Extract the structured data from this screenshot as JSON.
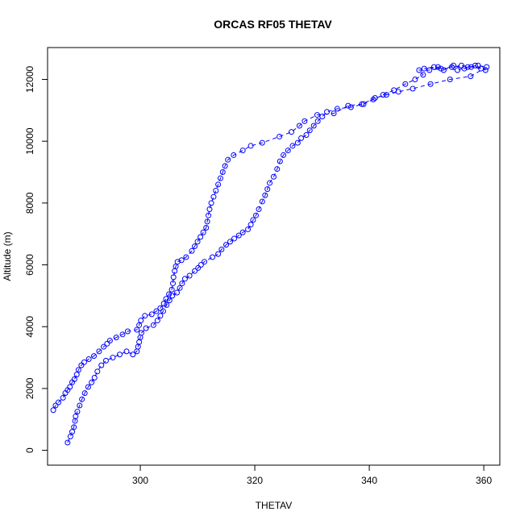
{
  "chart_data": {
    "type": "scatter",
    "title": "ORCAS RF05 THETAV",
    "xlabel": "THETAV",
    "ylabel": "Altitude (m)",
    "xlim": [
      283.8,
      362.8
    ],
    "ylim": [
      -480,
      13030
    ],
    "x_ticks": [
      300,
      320,
      340,
      360
    ],
    "y_ticks": [
      0,
      2000,
      4000,
      6000,
      8000,
      10000,
      12000
    ],
    "grid": false,
    "legend": "none",
    "marker": "open-circle",
    "color": "#0000ff",
    "connecting_line": "dashed",
    "series": [
      {
        "points": [
          [
            287.3,
            250
          ],
          [
            287.8,
            450
          ],
          [
            288.1,
            600
          ],
          [
            288.4,
            750
          ],
          [
            288.6,
            950
          ],
          [
            288.7,
            1100
          ],
          [
            289.0,
            1250
          ],
          [
            289.4,
            1450
          ],
          [
            289.8,
            1650
          ],
          [
            290.3,
            1850
          ],
          [
            290.9,
            2050
          ],
          [
            291.5,
            2200
          ],
          [
            292.0,
            2350
          ],
          [
            292.5,
            2550
          ],
          [
            293.2,
            2750
          ],
          [
            294.0,
            2900
          ],
          [
            295.2,
            3000
          ],
          [
            296.4,
            3100
          ],
          [
            297.6,
            3200
          ],
          [
            298.7,
            3100
          ],
          [
            299.4,
            3200
          ],
          [
            299.6,
            3350
          ],
          [
            299.8,
            3500
          ],
          [
            300.0,
            3650
          ],
          [
            300.2,
            3800
          ],
          [
            301.0,
            3950
          ],
          [
            302.3,
            4050
          ],
          [
            303.0,
            4200
          ],
          [
            303.5,
            4350
          ],
          [
            304.0,
            4500
          ],
          [
            304.6,
            4700
          ],
          [
            305.1,
            4850
          ],
          [
            305.6,
            5000
          ],
          [
            306.4,
            5100
          ],
          [
            306.9,
            5250
          ],
          [
            307.3,
            5400
          ],
          [
            307.8,
            5550
          ],
          [
            308.6,
            5650
          ],
          [
            309.5,
            5800
          ],
          [
            310.1,
            5900
          ],
          [
            310.6,
            6000
          ],
          [
            311.2,
            6100
          ],
          [
            312.6,
            6250
          ],
          [
            313.6,
            6350
          ],
          [
            314.2,
            6500
          ],
          [
            315.0,
            6650
          ],
          [
            315.7,
            6750
          ],
          [
            316.4,
            6850
          ],
          [
            317.2,
            6950
          ],
          [
            317.9,
            7050
          ],
          [
            318.8,
            7150
          ],
          [
            319.3,
            7300
          ],
          [
            319.7,
            7450
          ],
          [
            320.2,
            7600
          ],
          [
            320.7,
            7800
          ],
          [
            321.3,
            8050
          ],
          [
            321.8,
            8250
          ],
          [
            322.2,
            8450
          ],
          [
            322.6,
            8650
          ],
          [
            323.3,
            8850
          ],
          [
            323.9,
            9100
          ],
          [
            324.4,
            9350
          ],
          [
            325.0,
            9550
          ],
          [
            325.8,
            9700
          ],
          [
            326.6,
            9850
          ],
          [
            327.5,
            9950
          ],
          [
            328.1,
            10100
          ],
          [
            329.0,
            10200
          ],
          [
            329.6,
            10350
          ],
          [
            330.3,
            10500
          ],
          [
            331.0,
            10650
          ],
          [
            331.8,
            10800
          ],
          [
            332.6,
            10950
          ],
          [
            334.4,
            11050
          ],
          [
            336.8,
            11100
          ],
          [
            339.0,
            11200
          ],
          [
            340.7,
            11350
          ],
          [
            342.4,
            11500
          ],
          [
            344.3,
            11650
          ],
          [
            346.3,
            11850
          ],
          [
            348.0,
            12000
          ],
          [
            349.4,
            12150
          ],
          [
            348.7,
            12300
          ],
          [
            350.5,
            12300
          ],
          [
            352.5,
            12350
          ],
          [
            354.4,
            12400
          ],
          [
            356.1,
            12450
          ],
          [
            357.8,
            12400
          ],
          [
            359.5,
            12350
          ],
          [
            360.3,
            12300
          ],
          [
            358.5,
            12450
          ],
          [
            356.6,
            12350
          ],
          [
            354.7,
            12450
          ],
          [
            353.0,
            12300
          ],
          [
            351.3,
            12400
          ],
          [
            349.6,
            12350
          ],
          [
            352.0,
            12400
          ],
          [
            355.4,
            12300
          ],
          [
            357.2,
            12400
          ],
          [
            359.0,
            12450
          ],
          [
            360.5,
            12400
          ],
          [
            357.7,
            12100
          ],
          [
            354.1,
            12000
          ],
          [
            350.7,
            11850
          ],
          [
            347.6,
            11700
          ],
          [
            345.1,
            11600
          ],
          [
            343.0,
            11500
          ],
          [
            341.0,
            11400
          ],
          [
            338.7,
            11200
          ],
          [
            336.3,
            11150
          ],
          [
            333.8,
            10900
          ],
          [
            330.9,
            10850
          ],
          [
            328.7,
            10650
          ],
          [
            327.8,
            10500
          ],
          [
            326.4,
            10300
          ],
          [
            324.3,
            10150
          ],
          [
            321.3,
            9950
          ],
          [
            319.3,
            9850
          ],
          [
            317.9,
            9700
          ],
          [
            316.3,
            9550
          ],
          [
            315.3,
            9400
          ],
          [
            314.8,
            9200
          ],
          [
            314.4,
            9000
          ],
          [
            314.0,
            8800
          ],
          [
            313.6,
            8600
          ],
          [
            313.2,
            8400
          ],
          [
            312.8,
            8200
          ],
          [
            312.4,
            8000
          ],
          [
            312.1,
            7800
          ],
          [
            311.9,
            7600
          ],
          [
            311.7,
            7400
          ],
          [
            311.5,
            7200
          ],
          [
            311.0,
            7050
          ],
          [
            310.5,
            6900
          ],
          [
            310.0,
            6750
          ],
          [
            309.5,
            6600
          ],
          [
            309.0,
            6450
          ],
          [
            308.0,
            6250
          ],
          [
            307.2,
            6150
          ],
          [
            306.5,
            6100
          ],
          [
            306.2,
            5950
          ],
          [
            306.0,
            5800
          ],
          [
            305.8,
            5600
          ],
          [
            305.7,
            5400
          ],
          [
            305.5,
            5200
          ],
          [
            305.0,
            5050
          ],
          [
            304.5,
            4900
          ],
          [
            304.1,
            4750
          ],
          [
            303.5,
            4600
          ],
          [
            302.8,
            4500
          ],
          [
            302.0,
            4400
          ],
          [
            300.8,
            4350
          ],
          [
            300.1,
            4200
          ],
          [
            299.8,
            4050
          ],
          [
            299.4,
            3900
          ],
          [
            297.8,
            3850
          ],
          [
            296.9,
            3750
          ],
          [
            295.8,
            3650
          ],
          [
            294.7,
            3550
          ],
          [
            294.2,
            3450
          ],
          [
            293.6,
            3350
          ],
          [
            292.8,
            3200
          ],
          [
            291.9,
            3050
          ],
          [
            291.0,
            2950
          ],
          [
            290.2,
            2850
          ],
          [
            289.7,
            2750
          ],
          [
            289.2,
            2600
          ],
          [
            288.9,
            2450
          ],
          [
            288.5,
            2300
          ],
          [
            288.1,
            2200
          ],
          [
            287.7,
            2050
          ],
          [
            287.3,
            1950
          ],
          [
            286.9,
            1850
          ],
          [
            286.5,
            1700
          ],
          [
            285.7,
            1550
          ],
          [
            285.2,
            1450
          ],
          [
            284.8,
            1300
          ]
        ]
      }
    ]
  }
}
